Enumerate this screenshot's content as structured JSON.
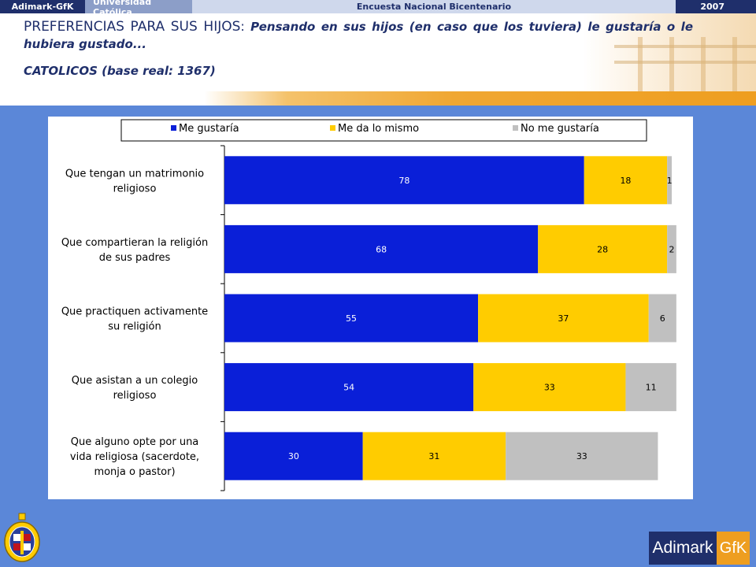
{
  "topbar": {
    "org": "Adimark-GfK",
    "university": "Universidad Católica",
    "survey": "Encuesta Nacional Bicentenario",
    "year": "2007"
  },
  "header": {
    "title_caps": "PREFERENCIAS PARA SUS HIJOS",
    "title_sep": ": ",
    "title_question": "Pensando en sus hijos (en caso que los tuviera) le gustaría o le hubiera gustado...",
    "subtitle": "CATOLICOS (base real: 1367)"
  },
  "colors": {
    "me_gustaria": "#0a1fd8",
    "me_da_lo_mismo": "#ffcc00",
    "no_me_gustaria": "#c0c0c0",
    "background": "#5b87d8",
    "navy": "#1f2f6b",
    "orange": "#ee9e20"
  },
  "chart_data": {
    "type": "bar",
    "orientation": "horizontal",
    "stacked": true,
    "categories": [
      [
        "Que tengan un matrimonio",
        "religioso"
      ],
      [
        "Que compartieran la religión",
        "de sus padres"
      ],
      [
        "Que practiquen activamente",
        "su religión"
      ],
      [
        "Que asistan a un colegio",
        "religioso"
      ],
      [
        "Que alguno opte por una",
        "vida religiosa (sacerdote,",
        "monja o pastor)"
      ]
    ],
    "series": [
      {
        "name": "Me gustaría",
        "color": "#0a1fd8",
        "values": [
          78,
          68,
          55,
          54,
          30
        ]
      },
      {
        "name": "Me da lo mismo",
        "color": "#ffcc00",
        "values": [
          18,
          28,
          37,
          33,
          31
        ]
      },
      {
        "name": "No me gustaría",
        "color": "#c0c0c0",
        "values": [
          1,
          2,
          6,
          11,
          33
        ]
      }
    ],
    "xlim": [
      0,
      97
    ],
    "legend": "top",
    "grid": false
  },
  "logos": {
    "adimark": "Adimark",
    "gfk": "GfK",
    "uc_seal": "seal-icon"
  }
}
